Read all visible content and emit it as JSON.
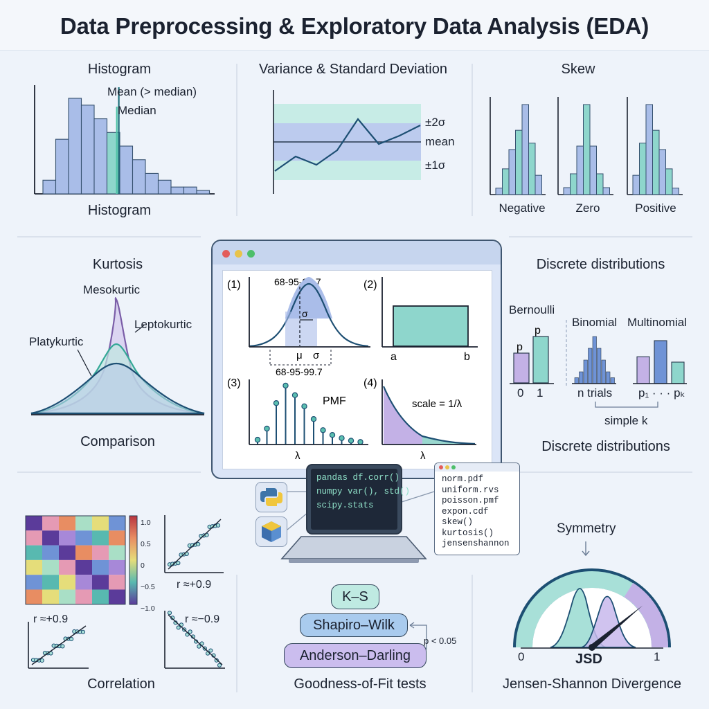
{
  "title": "Data Preprocessing & Exploratory Data Analysis (EDA)",
  "colors": {
    "blue": "#a9bde8",
    "teal": "#8ed6cc",
    "purple": "#c3b1e6",
    "line": "#1d4f73",
    "axis": "#1b2230"
  },
  "histogram": {
    "heading": "Histogram",
    "footer": "Histogram",
    "mean_label": "Mean (> median)",
    "median_label": "Median",
    "chart_data": {
      "type": "bar",
      "values": [
        2,
        8,
        14,
        13,
        11,
        9,
        7,
        5,
        3,
        2,
        1,
        1,
        0.5
      ],
      "highlight_index": 5,
      "mean_index": 5.6,
      "median_index": 5.0
    }
  },
  "variance": {
    "heading": "Variance & Standard Deviation",
    "labels": {
      "plus2": "±2σ",
      "mean": "mean",
      "plus1": "±1σ"
    },
    "chart_data": {
      "type": "line",
      "values": [
        -1.4,
        -0.7,
        -1.1,
        -0.4,
        1.1,
        -0.1,
        0.3,
        0.8
      ]
    }
  },
  "skew": {
    "heading": "Skew",
    "labels": [
      "Negative",
      "Zero",
      "Positive"
    ],
    "chart_data": [
      {
        "type": "bar",
        "values": [
          1,
          4,
          7,
          10,
          14,
          8,
          3
        ]
      },
      {
        "type": "bar",
        "values": [
          1,
          3,
          7,
          13,
          7,
          3,
          1
        ]
      },
      {
        "type": "bar",
        "values": [
          3,
          8,
          14,
          10,
          7,
          4,
          1
        ]
      }
    ]
  },
  "kurtosis": {
    "heading": "Kurtosis",
    "footer": "Comparison",
    "labels": {
      "meso": "Mesokurtic",
      "lepto": "Leptokurtic",
      "platy": "Platykurtic"
    }
  },
  "window": {
    "panel1": {
      "num": "(1)",
      "top_label": "68-95-99.7",
      "mu": "μ",
      "sigma": "σ",
      "sigma_tag": "σ",
      "bottom_label": "68-95-99.7"
    },
    "panel2": {
      "num": "(2)",
      "a": "a",
      "b": "b"
    },
    "panel3": {
      "num": "(3)",
      "pmf": "PMF",
      "lambda": "λ",
      "chart_data": {
        "type": "bar",
        "values": [
          0.15,
          0.5,
          1.3,
          1.85,
          1.55,
          1.2,
          0.8,
          0.45,
          0.3,
          0.2,
          0.12,
          0.08
        ]
      }
    },
    "panel4": {
      "num": "(4)",
      "scale": "scale = 1/λ",
      "lambda": "λ"
    }
  },
  "discrete": {
    "heading": "Discrete distributions",
    "footer": "Discrete distributions",
    "bernoulli": {
      "label": "Bernoulli",
      "p_left": "p",
      "p_right": "p",
      "x0": "0",
      "x1": "1"
    },
    "binomial": {
      "label": "Binomial",
      "trials": "n trials",
      "chart_data": {
        "type": "bar",
        "values": [
          1,
          2,
          4,
          6,
          8,
          6,
          4,
          2,
          1
        ]
      }
    },
    "multinomial": {
      "label": "Multinomial",
      "pk": "p₁ · · · pₖ",
      "chart_data": {
        "type": "bar",
        "values": [
          5,
          8,
          4
        ]
      }
    },
    "simple_k": "simple k"
  },
  "code": {
    "laptop_lines": [
      "pandas df.corr()",
      "numpy var(), std()",
      "scipy.stats"
    ],
    "popup_lines": [
      "norm.pdf",
      "uniform.rvs",
      "poisson.pmf",
      "expon.cdf",
      "skew()",
      "kurtosis()",
      "jensenshannon"
    ]
  },
  "correlation": {
    "footer": "Correlation",
    "colorbar_ticks": [
      "1.0",
      "0.5",
      "0",
      "−0.5",
      "−1.0"
    ],
    "r_pos": "r ≈+0.9",
    "r_pos2": "r ≈+0.9",
    "r_neg": "r ≈−0.9"
  },
  "gof": {
    "ks": "K–S",
    "shapiro": "Shapiro–Wilk",
    "anderson": "Anderson–Darling",
    "pval": "p < 0.05",
    "footer": "Goodness-of-Fit tests"
  },
  "jsd": {
    "symmetry": "Symmetry",
    "zero": "0",
    "one": "1",
    "center": "JSD",
    "footer": "Jensen-Shannon Divergence",
    "gauge_value": 0.78
  }
}
